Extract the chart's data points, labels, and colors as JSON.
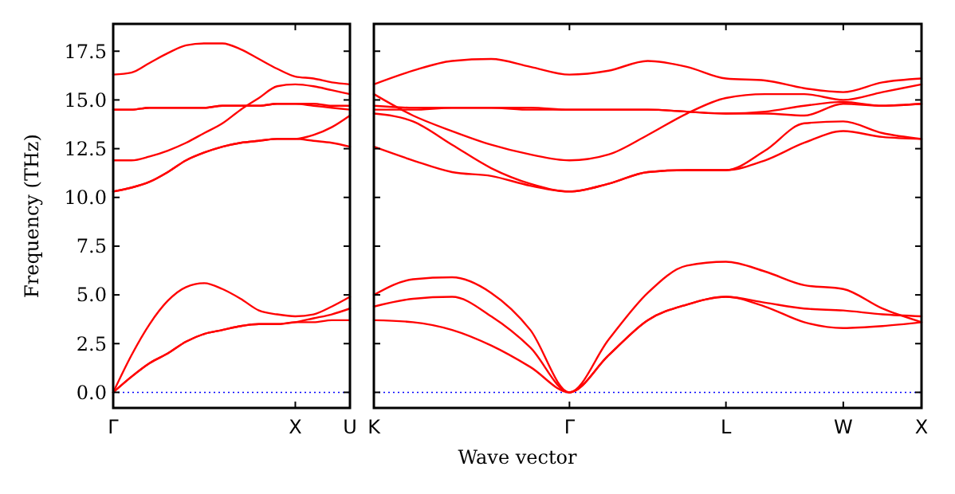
{
  "chart_data": [
    {
      "type": "line",
      "ylabel": "Frequency (THz)",
      "ylim": [
        -0.8,
        18.9
      ],
      "categories": [
        "Γ",
        null,
        null,
        null,
        null,
        null,
        null,
        null,
        null,
        null,
        "X",
        null,
        null,
        "U"
      ],
      "yticks": [
        {
          "value": 0,
          "label": "0.0"
        },
        {
          "value": 2.5,
          "label": "2.5"
        },
        {
          "value": 5,
          "label": "5.0"
        },
        {
          "value": 7.5,
          "label": "7.5"
        },
        {
          "value": 10,
          "label": "10.0"
        },
        {
          "value": 12.5,
          "label": "12.5"
        },
        {
          "value": 15,
          "label": "15.0"
        },
        {
          "value": 17.5,
          "label": "17.5"
        }
      ],
      "ref_lines": [
        {
          "axis": "y",
          "value": 0,
          "color": "#0000ff",
          "line_style": "dotted"
        }
      ],
      "series": [
        {
          "color": "#ff0000",
          "values": [
            0,
            0.8,
            1.5,
            2.0,
            2.6,
            3.0,
            3.2,
            3.4,
            3.5,
            3.5,
            3.6,
            3.6,
            3.7,
            3.7
          ]
        },
        {
          "color": "#ff0000",
          "values": [
            0,
            0.8,
            1.5,
            2.0,
            2.6,
            3.0,
            3.2,
            3.4,
            3.5,
            3.5,
            3.6,
            3.8,
            4.0,
            4.3
          ]
        },
        {
          "color": "#ff0000",
          "values": [
            0,
            1.9,
            3.5,
            4.7,
            5.4,
            5.6,
            5.3,
            4.8,
            4.2,
            4.0,
            3.9,
            4.0,
            4.4,
            4.9
          ]
        },
        {
          "color": "#ff0000",
          "values": [
            10.3,
            10.5,
            10.8,
            11.3,
            11.9,
            12.3,
            12.6,
            12.8,
            12.9,
            13.0,
            13.0,
            12.9,
            12.8,
            12.6
          ]
        },
        {
          "color": "#ff0000",
          "values": [
            10.3,
            10.5,
            10.8,
            11.3,
            11.9,
            12.3,
            12.6,
            12.8,
            12.9,
            13.0,
            13.0,
            13.2,
            13.6,
            14.2
          ]
        },
        {
          "color": "#ff0000",
          "values": [
            11.9,
            11.9,
            12.1,
            12.4,
            12.8,
            13.3,
            13.8,
            14.5,
            15.1,
            15.7,
            15.8,
            15.7,
            15.5,
            15.3
          ]
        },
        {
          "color": "#ff0000",
          "values": [
            14.5,
            14.5,
            14.6,
            14.6,
            14.6,
            14.6,
            14.7,
            14.7,
            14.7,
            14.8,
            14.8,
            14.8,
            14.7,
            14.7
          ]
        },
        {
          "color": "#ff0000",
          "values": [
            14.5,
            14.5,
            14.6,
            14.6,
            14.6,
            14.6,
            14.7,
            14.7,
            14.7,
            14.8,
            14.8,
            14.7,
            14.6,
            14.5
          ]
        },
        {
          "color": "#ff0000",
          "values": [
            16.3,
            16.4,
            16.9,
            17.4,
            17.8,
            17.9,
            17.9,
            17.6,
            17.1,
            16.6,
            16.2,
            16.1,
            15.9,
            15.8
          ]
        }
      ]
    },
    {
      "type": "line",
      "xlabel": "Wave vector",
      "ylim": [
        -0.8,
        18.9
      ],
      "tick_labels": "x",
      "categories": [
        "K",
        null,
        null,
        null,
        null,
        "Γ",
        null,
        null,
        null,
        "L",
        null,
        null,
        "W",
        null,
        "X"
      ],
      "yticks": [
        {
          "value": 0,
          "label": null
        },
        {
          "value": 2.5,
          "label": null
        },
        {
          "value": 5,
          "label": null
        },
        {
          "value": 7.5,
          "label": null
        },
        {
          "value": 10,
          "label": null
        },
        {
          "value": 12.5,
          "label": null
        },
        {
          "value": 15,
          "label": null
        },
        {
          "value": 17.5,
          "label": null
        }
      ],
      "ref_lines": [
        {
          "axis": "y",
          "value": 0,
          "color": "#0000ff",
          "line_style": "dotted"
        }
      ],
      "series": [
        {
          "color": "#ff0000",
          "values": [
            3.7,
            3.6,
            3.2,
            2.4,
            1.3,
            0,
            1.9,
            3.7,
            4.5,
            4.9,
            4.4,
            3.6,
            3.3,
            3.4,
            3.6
          ]
        },
        {
          "color": "#ff0000",
          "values": [
            4.4,
            4.8,
            4.9,
            3.9,
            2.3,
            0,
            1.9,
            3.7,
            4.5,
            4.9,
            4.6,
            4.3,
            4.2,
            4.0,
            3.9
          ]
        },
        {
          "color": "#ff0000",
          "values": [
            5.0,
            5.8,
            5.9,
            5.1,
            3.2,
            0,
            2.7,
            5.1,
            6.5,
            6.7,
            6.2,
            5.5,
            5.3,
            4.3,
            3.6
          ]
        },
        {
          "color": "#ff0000",
          "values": [
            12.6,
            11.9,
            11.3,
            11.1,
            10.6,
            10.3,
            10.7,
            11.3,
            11.4,
            11.4,
            11.9,
            12.8,
            13.4,
            13.1,
            13.0
          ]
        },
        {
          "color": "#ff0000",
          "values": [
            14.3,
            13.9,
            12.7,
            11.5,
            10.7,
            10.3,
            10.7,
            11.3,
            11.4,
            11.4,
            12.4,
            13.8,
            13.9,
            13.3,
            13.0
          ]
        },
        {
          "color": "#ff0000",
          "values": [
            15.3,
            14.2,
            13.4,
            12.7,
            12.2,
            11.9,
            12.2,
            13.2,
            14.3,
            15.1,
            15.3,
            15.3,
            15.0,
            15.4,
            15.8
          ]
        },
        {
          "color": "#ff0000",
          "values": [
            14.5,
            14.5,
            14.6,
            14.6,
            14.6,
            14.5,
            14.5,
            14.5,
            14.4,
            14.3,
            14.4,
            14.7,
            14.9,
            14.7,
            14.8
          ]
        },
        {
          "color": "#ff0000",
          "values": [
            14.7,
            14.6,
            14.6,
            14.6,
            14.5,
            14.5,
            14.5,
            14.5,
            14.4,
            14.3,
            14.3,
            14.2,
            14.8,
            14.7,
            14.8
          ]
        },
        {
          "color": "#ff0000",
          "values": [
            15.8,
            16.5,
            17.0,
            17.1,
            16.7,
            16.3,
            16.5,
            17.0,
            16.7,
            16.1,
            16.0,
            15.6,
            15.4,
            15.9,
            16.1
          ]
        }
      ]
    }
  ]
}
